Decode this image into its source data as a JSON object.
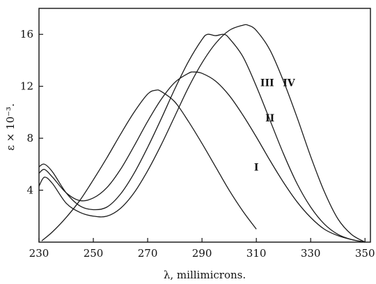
{
  "chart_data": {
    "type": "line",
    "xlabel": "λ, millimicrons.",
    "ylabel": "ε × 10⁻³.",
    "xlim": [
      230,
      352
    ],
    "ylim": [
      0,
      18
    ],
    "xticks": [
      230,
      250,
      270,
      290,
      310,
      330,
      350
    ],
    "yticks": [
      4,
      8,
      12,
      16
    ],
    "grid": false,
    "series": [
      {
        "name": "I",
        "x": [
          231,
          235,
          240,
          245,
          250,
          255,
          260,
          265,
          270,
          273,
          275,
          280,
          285,
          290,
          295,
          300,
          305,
          310
        ],
        "y": [
          0.1,
          0.8,
          1.9,
          3.2,
          4.8,
          6.5,
          8.3,
          10.0,
          11.4,
          11.7,
          11.6,
          10.8,
          9.3,
          7.6,
          5.8,
          4.0,
          2.4,
          1.0
        ]
      },
      {
        "name": "II",
        "x": [
          230,
          232,
          235,
          240,
          245,
          250,
          255,
          260,
          265,
          270,
          275,
          280,
          285,
          287,
          290,
          295,
          300,
          305,
          310,
          315,
          320,
          325,
          330,
          335,
          340,
          345,
          350
        ],
        "y": [
          5.3,
          5.6,
          5.0,
          3.8,
          3.2,
          3.4,
          4.2,
          5.6,
          7.4,
          9.3,
          11.0,
          12.3,
          13.0,
          13.1,
          13.0,
          12.4,
          11.3,
          9.8,
          8.1,
          6.3,
          4.6,
          3.1,
          1.9,
          1.0,
          0.5,
          0.2,
          0.0
        ]
      },
      {
        "name": "III",
        "x": [
          230,
          232,
          235,
          240,
          245,
          250,
          255,
          260,
          265,
          270,
          275,
          280,
          285,
          290,
          292,
          295,
          298,
          300,
          305,
          310,
          315,
          320,
          325,
          330,
          335,
          340,
          345,
          350
        ],
        "y": [
          5.8,
          6.0,
          5.4,
          3.8,
          2.8,
          2.5,
          2.7,
          3.7,
          5.3,
          7.3,
          9.5,
          11.8,
          13.9,
          15.6,
          16.0,
          15.9,
          16.0,
          15.7,
          14.3,
          12.0,
          9.4,
          6.8,
          4.5,
          2.7,
          1.4,
          0.6,
          0.2,
          0.0
        ]
      },
      {
        "name": "IV",
        "x": [
          230,
          232,
          235,
          240,
          245,
          250,
          255,
          260,
          265,
          270,
          275,
          280,
          285,
          290,
          295,
          300,
          305,
          307,
          310,
          315,
          320,
          325,
          330,
          335,
          340,
          345,
          350
        ],
        "y": [
          4.3,
          5.0,
          4.5,
          3.0,
          2.3,
          2.0,
          2.0,
          2.6,
          3.8,
          5.5,
          7.5,
          9.7,
          11.9,
          13.8,
          15.3,
          16.3,
          16.7,
          16.7,
          16.3,
          14.8,
          12.4,
          9.6,
          6.6,
          3.9,
          1.8,
          0.6,
          0.0
        ]
      }
    ],
    "annotations": [
      {
        "text": "I",
        "x": 310,
        "y": 5.5
      },
      {
        "text": "II",
        "x": 315,
        "y": 9.3
      },
      {
        "text": "III",
        "x": 314,
        "y": 12.0
      },
      {
        "text": "IV",
        "x": 322,
        "y": 12.0
      }
    ]
  }
}
